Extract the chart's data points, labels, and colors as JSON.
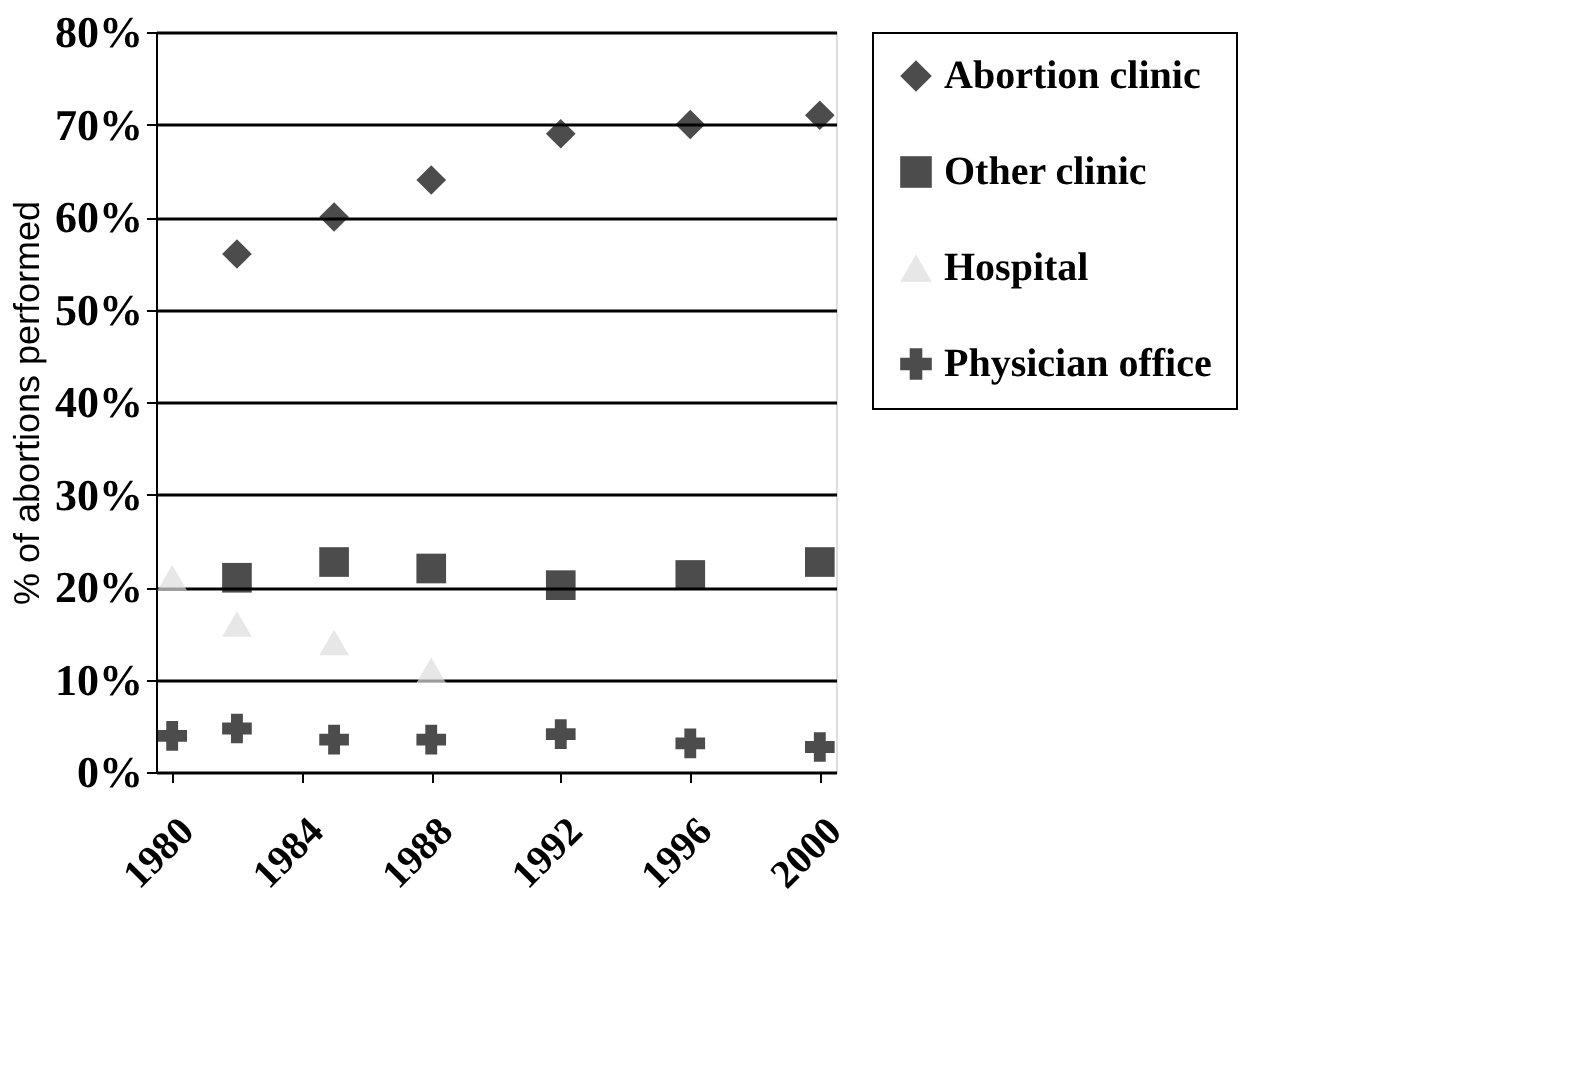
{
  "chart_data": {
    "type": "scatter",
    "ylabel": "% of abortions performed",
    "categories": [
      "1980",
      null,
      null,
      null,
      "1984",
      null,
      null,
      null,
      "1988",
      null,
      null,
      null,
      "1992",
      null,
      null,
      null,
      "1996",
      null,
      null,
      null,
      "2000"
    ],
    "series": [
      {
        "name": "Abortion clinic",
        "color": "#000000",
        "marker": "diamond",
        "values": [
          null,
          null,
          56,
          null,
          null,
          60,
          null,
          null,
          64,
          null,
          null,
          null,
          69,
          null,
          null,
          null,
          70,
          null,
          null,
          null,
          71
        ]
      },
      {
        "name": "Other clinic",
        "color": "#000000",
        "marker": "square",
        "values": [
          null,
          null,
          21,
          null,
          null,
          22.7,
          null,
          null,
          22,
          null,
          null,
          null,
          20.2,
          null,
          null,
          null,
          21.3,
          null,
          null,
          null,
          22.7
        ]
      },
      {
        "name": "Hospital",
        "color": "#dddddd",
        "marker": "triangle",
        "values": [
          21,
          null,
          16,
          null,
          null,
          14,
          null,
          null,
          11,
          null,
          null,
          null,
          null,
          null,
          null,
          null,
          null,
          null,
          null,
          null,
          null
        ]
      },
      {
        "name": "Physician office",
        "color": "#000000",
        "marker": "cross",
        "values": [
          3.9,
          null,
          4.7,
          null,
          null,
          3.5,
          null,
          null,
          3.5,
          null,
          null,
          null,
          4.1,
          null,
          null,
          null,
          3.1,
          null,
          null,
          null,
          2.7
        ]
      }
    ],
    "ylim": [
      0,
      80
    ],
    "yticks": [
      {
        "value": 0,
        "label": "0%"
      },
      {
        "value": 10,
        "label": "10%"
      },
      {
        "value": 20,
        "label": "20%"
      },
      {
        "value": 30,
        "label": "30%"
      },
      {
        "value": 40,
        "label": "40%"
      },
      {
        "value": 50,
        "label": "50%"
      },
      {
        "value": 60,
        "label": "60%"
      },
      {
        "value": 70,
        "label": "70%"
      },
      {
        "value": 80,
        "label": "80%"
      }
    ],
    "grid": "y",
    "legend": "right"
  }
}
